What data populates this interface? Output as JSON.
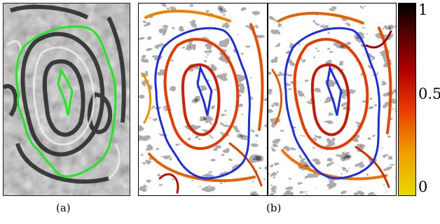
{
  "figure": {
    "captions": [
      "(a)",
      "(b)"
    ],
    "colorbar": {
      "ticks": [
        "1",
        "0.5",
        "0"
      ],
      "colors": [
        "#e8d800",
        "#f0a000",
        "#e83a00",
        "#b00000",
        "#500000",
        "#000000"
      ]
    },
    "contour_colors": {
      "panel_a": "#22e622",
      "panel_b": "#1a2ee0"
    }
  }
}
